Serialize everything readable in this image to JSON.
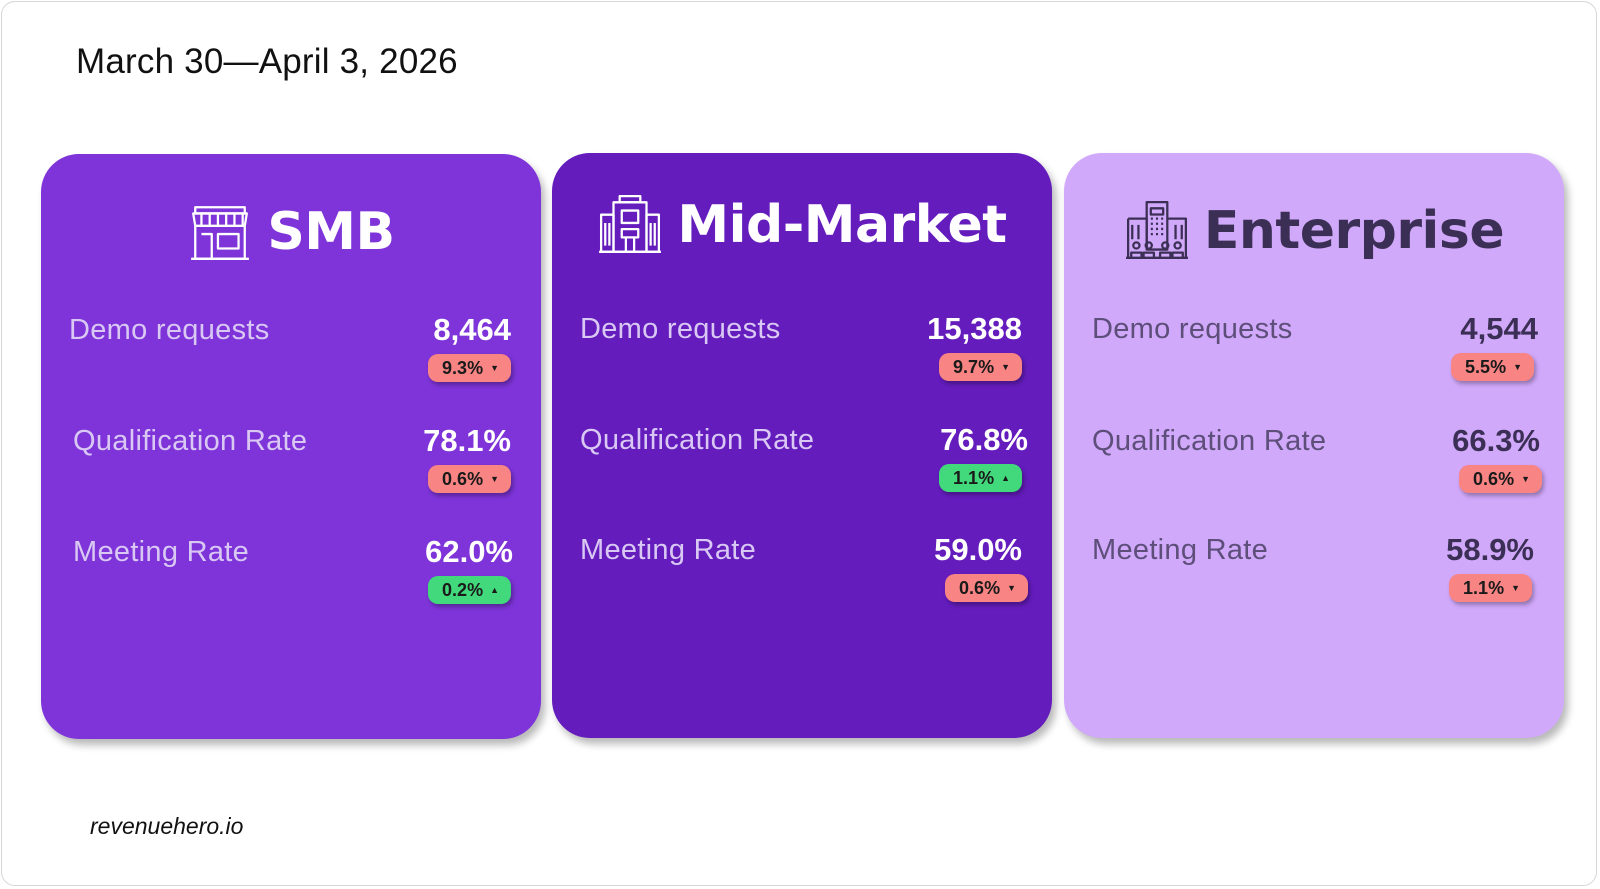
{
  "header": {
    "date_range": "March 30—April 3, 2026"
  },
  "footer": {
    "brand": "revenuehero.io"
  },
  "colors": {
    "smb_card": "#7e34d9",
    "mid_market_card": "#641cbd",
    "enterprise_card": "#d1a9fb",
    "badge_down": "#f98484",
    "badge_up": "#42d97d"
  },
  "segments": [
    {
      "title": "SMB",
      "icon": "storefront-icon",
      "metrics": [
        {
          "label": "Demo requests",
          "value": "8,464",
          "change": "9.3%",
          "direction": "down",
          "arrow": "▼"
        },
        {
          "label": "Qualification Rate",
          "value": "78.1%",
          "change": "0.6%",
          "direction": "down",
          "arrow": "▼"
        },
        {
          "label": "Meeting Rate",
          "value": "62.0%",
          "change": "0.2%",
          "direction": "up",
          "arrow": "▲"
        }
      ]
    },
    {
      "title": "Mid-Market",
      "icon": "office-building-icon",
      "metrics": [
        {
          "label": "Demo requests",
          "value": "15,388",
          "change": "9.7%",
          "direction": "down",
          "arrow": "▼"
        },
        {
          "label": "Qualification Rate",
          "value": "76.8%",
          "change": "1.1%",
          "direction": "up",
          "arrow": "▲"
        },
        {
          "label": "Meeting Rate",
          "value": "59.0%",
          "change": "0.6%",
          "direction": "down",
          "arrow": "▼"
        }
      ]
    },
    {
      "title": "Enterprise",
      "icon": "corporate-building-icon",
      "metrics": [
        {
          "label": "Demo requests",
          "value": "4,544",
          "change": "5.5%",
          "direction": "down",
          "arrow": "▼"
        },
        {
          "label": "Qualification Rate",
          "value": "66.3%",
          "change": "0.6%",
          "direction": "down",
          "arrow": "▼"
        },
        {
          "label": "Meeting Rate",
          "value": "58.9%",
          "change": "1.1%",
          "direction": "down",
          "arrow": "▼"
        }
      ]
    }
  ]
}
